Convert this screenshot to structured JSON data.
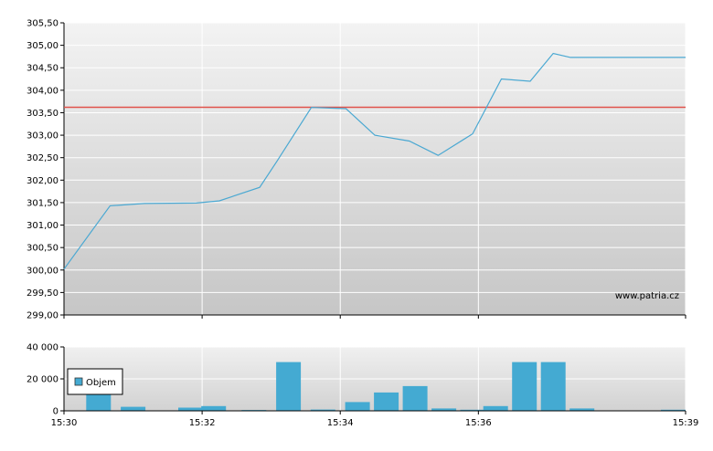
{
  "watermark": "www.patria.cz",
  "legend": {
    "label": "Objem"
  },
  "colors": {
    "price_line": "#4aa8d2",
    "reference_line": "#e0524a",
    "volume_bar": "#44aad2",
    "plot_bg_top": "#f2f2f2",
    "plot_bg_bottom": "#c8c8c8",
    "grid": "#ffffff"
  },
  "chart_data": [
    {
      "type": "line",
      "x_range": [
        "15:30",
        "15:39"
      ],
      "ylim": [
        299.0,
        305.5
      ],
      "y_ticks": [
        "305,50",
        "305,00",
        "304,50",
        "304,00",
        "303,50",
        "303,00",
        "302,50",
        "302,00",
        "301,50",
        "301,00",
        "300,50",
        "300,00",
        "299,50",
        "299,00"
      ],
      "reference_value": 303.62,
      "series": [
        {
          "points": [
            [
              "15:30:00",
              300.02
            ],
            [
              "15:30:40",
              301.43
            ],
            [
              "15:31:10",
              301.48
            ],
            [
              "15:31:55",
              301.49
            ],
            [
              "15:32:15",
              301.54
            ],
            [
              "15:32:50",
              301.84
            ],
            [
              "15:33:05",
              302.42
            ],
            [
              "15:33:35",
              303.62
            ],
            [
              "15:34:05",
              303.59
            ],
            [
              "15:34:30",
              303.0
            ],
            [
              "15:35:00",
              302.87
            ],
            [
              "15:35:25",
              302.55
            ],
            [
              "15:35:55",
              303.03
            ],
            [
              "15:36:20",
              304.25
            ],
            [
              "15:36:45",
              304.2
            ],
            [
              "15:37:05",
              304.82
            ],
            [
              "15:37:20",
              304.73
            ],
            [
              "15:39:00",
              304.73
            ]
          ]
        }
      ]
    },
    {
      "type": "bar",
      "x_ticks": [
        "15:30",
        "15:32",
        "15:34",
        "15:36",
        "15:39"
      ],
      "ylim": [
        0,
        40000
      ],
      "y_ticks": [
        "40 000",
        "20 000",
        "0"
      ],
      "series": [
        {
          "name": "Objem",
          "bars": [
            [
              "15:30:00",
              300
            ],
            [
              "15:30:30",
              14500
            ],
            [
              "15:31:00",
              2500
            ],
            [
              "15:31:50",
              2000
            ],
            [
              "15:32:10",
              3000
            ],
            [
              "15:32:45",
              500
            ],
            [
              "15:33:15",
              30500
            ],
            [
              "15:33:45",
              800
            ],
            [
              "15:34:15",
              5500
            ],
            [
              "15:34:40",
              11500
            ],
            [
              "15:35:05",
              15500
            ],
            [
              "15:35:30",
              1500
            ],
            [
              "15:35:55",
              700
            ],
            [
              "15:36:15",
              3000
            ],
            [
              "15:36:40",
              30500
            ],
            [
              "15:37:05",
              30500
            ],
            [
              "15:37:30",
              1500
            ],
            [
              "15:38:50",
              700
            ]
          ]
        }
      ]
    }
  ]
}
